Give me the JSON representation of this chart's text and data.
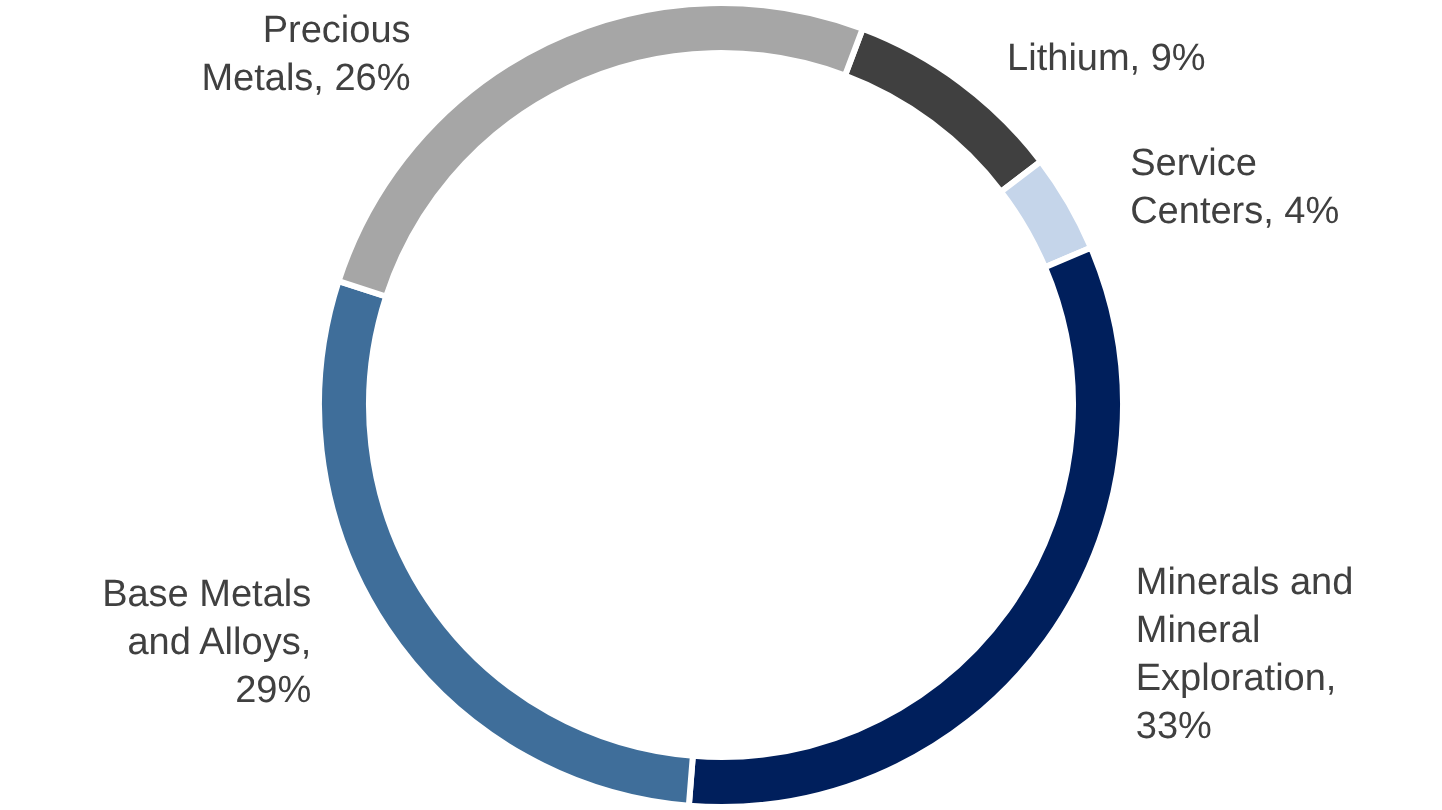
{
  "chart_data": {
    "type": "donut",
    "categories": [
      "Lithium, 9%",
      "Service Centers, 4%",
      "Minerals and Mineral Exploration, 33%",
      "Base Metals and Alloys, 29%",
      "Precious Metals, 26%"
    ],
    "values": [
      9,
      4,
      33,
      29,
      26
    ],
    "colors": [
      "#404040",
      "#c5d5ea",
      "#001f5c",
      "#3f6e9a",
      "#a6a6a6"
    ]
  }
}
